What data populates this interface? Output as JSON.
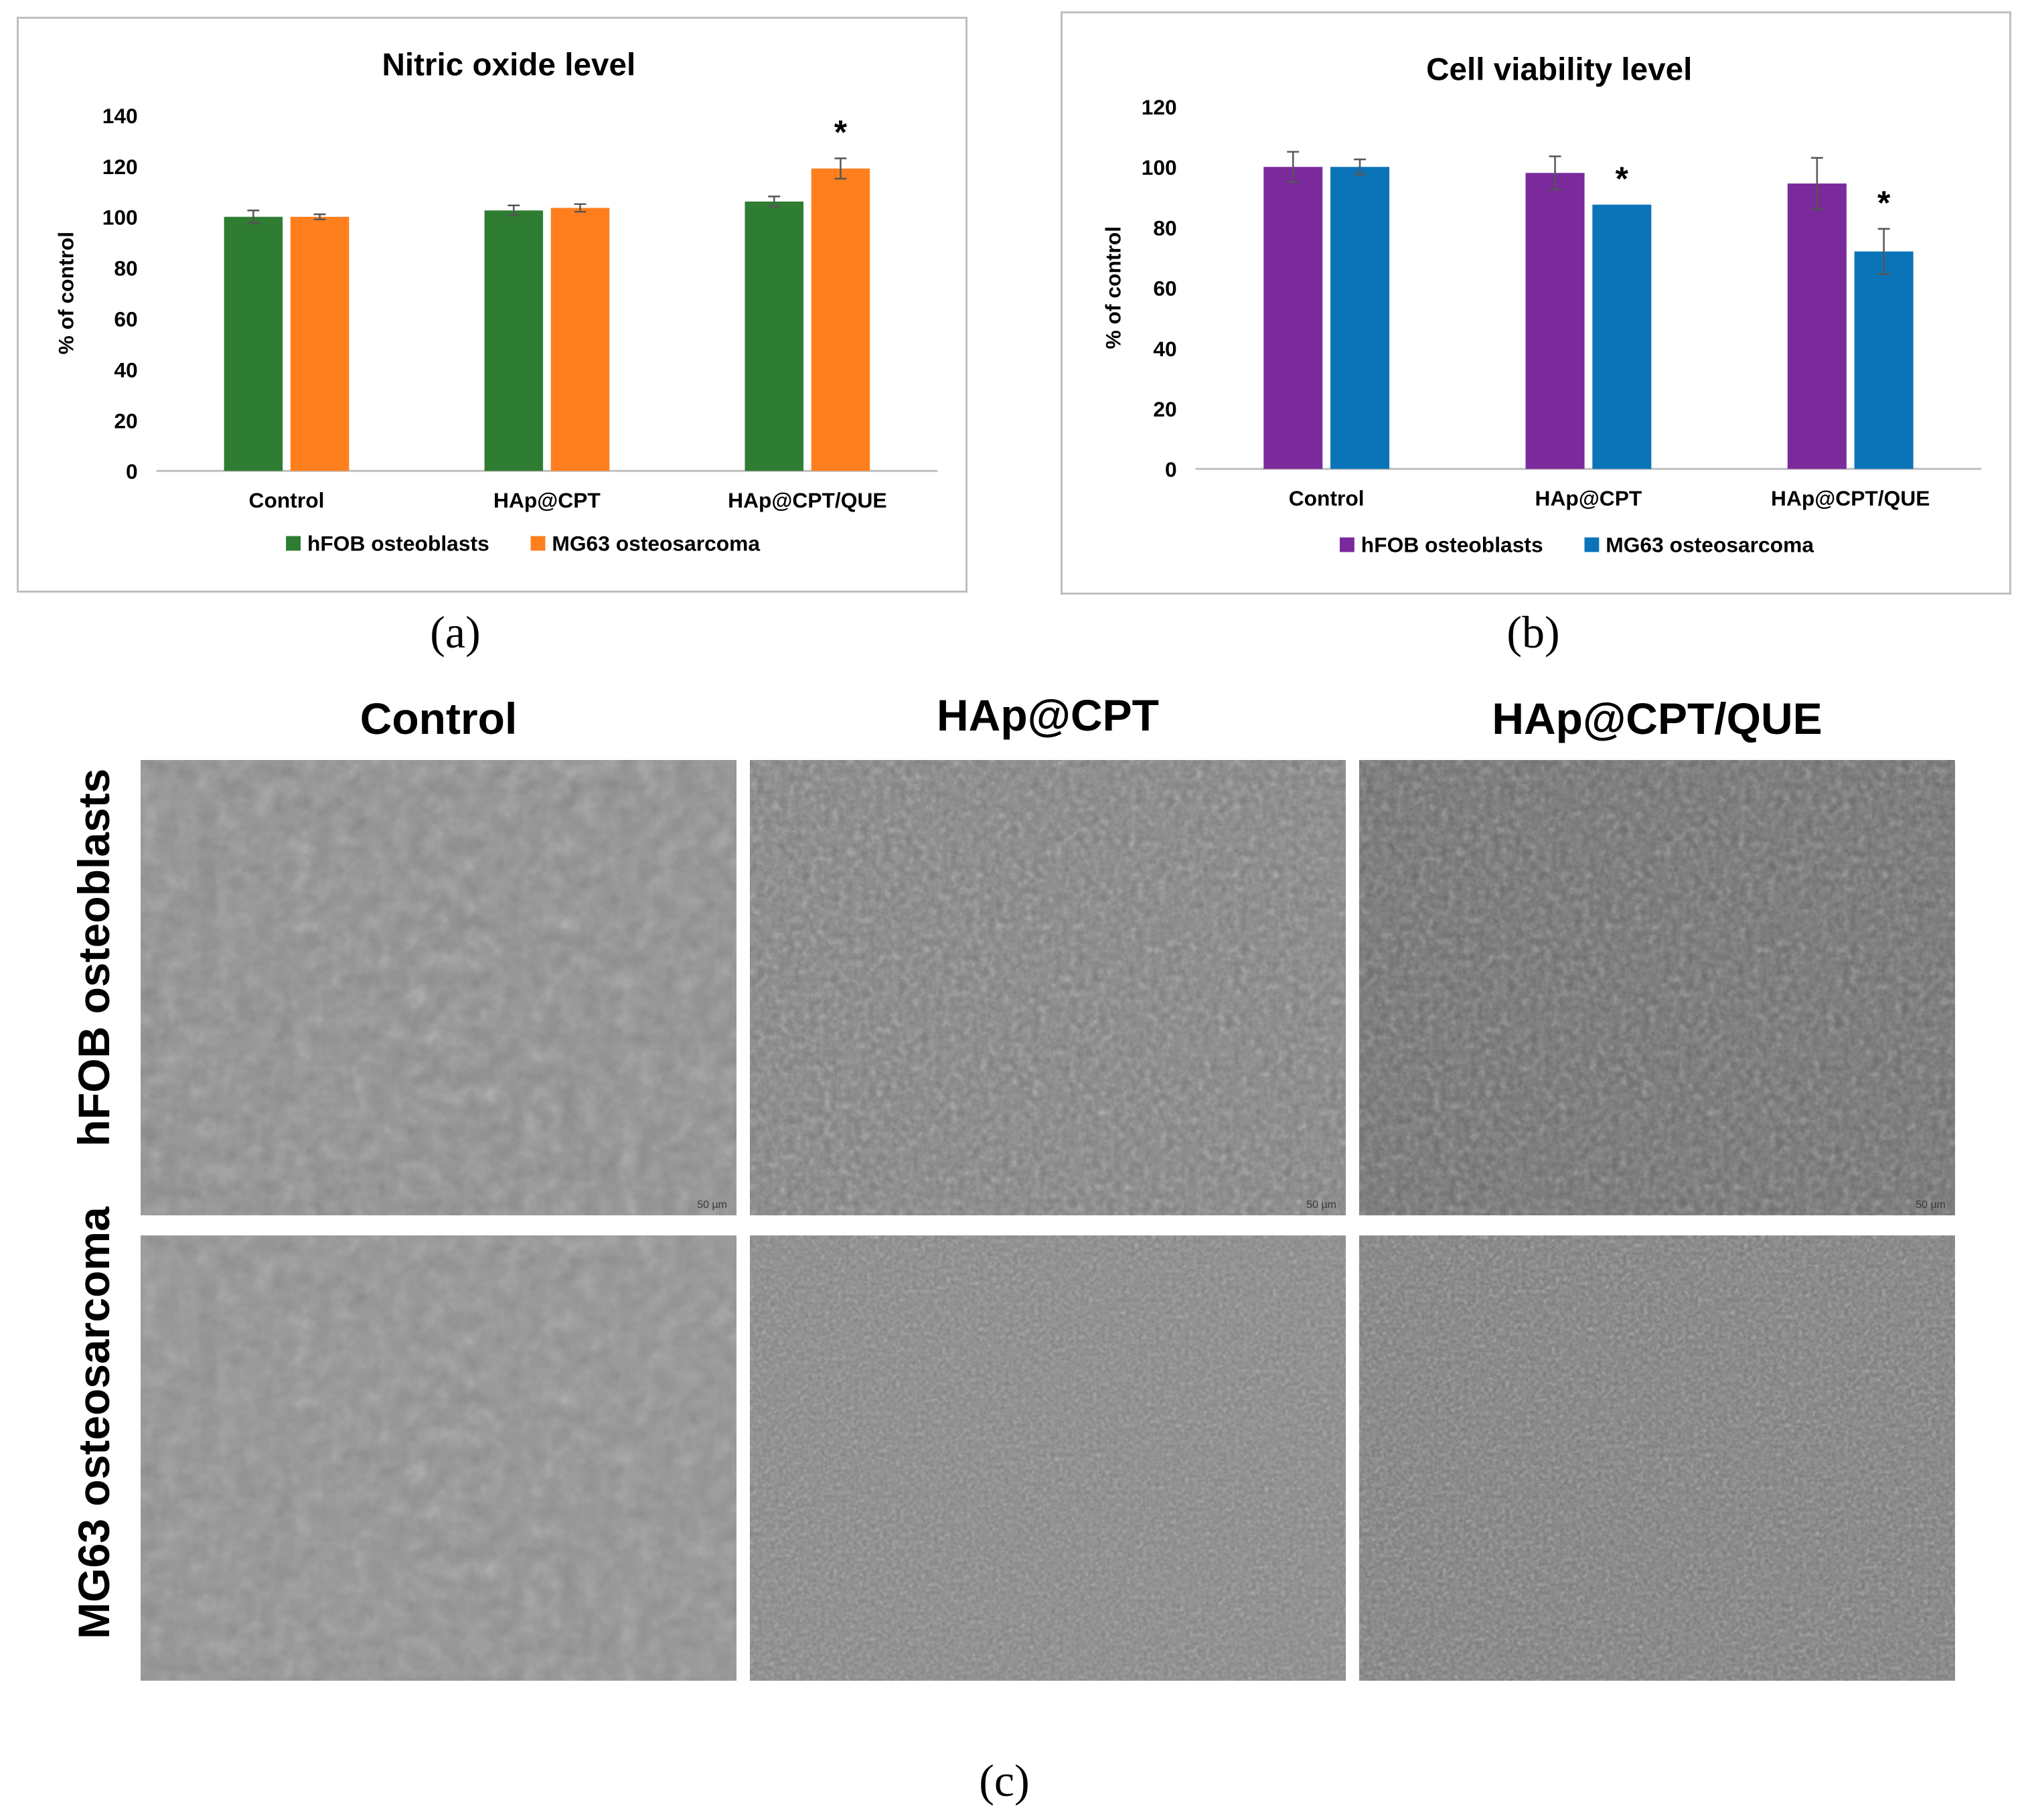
{
  "charts": {
    "a": {
      "label": "(a)"
    },
    "b": {
      "label": "(b)"
    }
  },
  "chart_data": [
    {
      "type": "bar",
      "title": "Nitric oxide level",
      "xlabel": "",
      "ylabel": "% of control",
      "categories": [
        "Control",
        "HAp@CPT",
        "HAp@CPT/QUE"
      ],
      "series": [
        {
          "name": "hFOB osteoblasts",
          "color": "#2e7d32",
          "values": [
            100,
            102.5,
            106
          ],
          "errors": [
            2.5,
            2,
            2
          ]
        },
        {
          "name": "MG63 osteosarcoma",
          "color": "#ff7f1e",
          "values": [
            100,
            103.5,
            119
          ],
          "errors": [
            1,
            1.5,
            4
          ]
        }
      ],
      "significance": [
        {
          "series": "MG63 osteosarcoma",
          "category": "HAp@CPT/QUE",
          "mark": "*"
        }
      ],
      "ylim": [
        0,
        140
      ],
      "yticks": [
        "0",
        "20",
        "40",
        "60",
        "80",
        "100",
        "120",
        "140"
      ],
      "ytick_values": [
        0,
        20,
        40,
        60,
        80,
        100,
        120,
        140
      ],
      "legend_position": "bottom",
      "grid": false
    },
    {
      "type": "bar",
      "title": "Cell viability level",
      "xlabel": "",
      "ylabel": "% of control",
      "categories": [
        "Control",
        "HAp@CPT",
        "HAp@CPT/QUE"
      ],
      "series": [
        {
          "name": "hFOB osteoblasts",
          "color": "#7b2a9c",
          "values": [
            100,
            98,
            94.5
          ],
          "errors": [
            5,
            5.5,
            8.5
          ]
        },
        {
          "name": "MG63 osteosarcoma",
          "color": "#0b74b8",
          "values": [
            100,
            87.5,
            72
          ],
          "errors": [
            2.5,
            0,
            7.5
          ]
        }
      ],
      "significance": [
        {
          "series": "MG63 osteosarcoma",
          "category": "HAp@CPT",
          "mark": "*"
        },
        {
          "series": "MG63 osteosarcoma",
          "category": "HAp@CPT/QUE",
          "mark": "*"
        }
      ],
      "ylim": [
        0,
        120
      ],
      "yticks": [
        "0",
        "20",
        "40",
        "60",
        "80",
        "100",
        "120"
      ],
      "ytick_values": [
        0,
        20,
        40,
        60,
        80,
        100,
        120
      ],
      "legend_position": "bottom",
      "grid": false
    }
  ],
  "micrographs": {
    "label": "(c)",
    "columns": [
      "Control",
      "HAp@CPT",
      "HAp@CPT/QUE"
    ],
    "rows": [
      "hFOB osteoblasts",
      "MG63 osteosarcoma"
    ],
    "scale_bar": "50 µm"
  }
}
